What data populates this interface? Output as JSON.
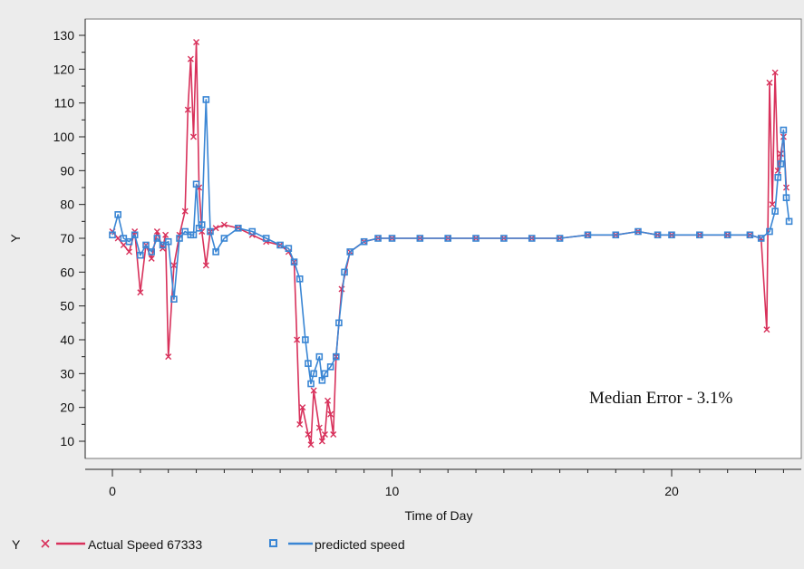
{
  "chart_data": {
    "type": "line",
    "title": "",
    "xlabel": "Time of Day",
    "ylabel": "Y",
    "xlim": [
      -0.9,
      24.9
    ],
    "ylim": [
      5,
      133
    ],
    "x_ticks": [
      0,
      10,
      20
    ],
    "y_ticks": [
      10,
      20,
      30,
      40,
      50,
      60,
      70,
      80,
      90,
      100,
      110,
      120,
      130
    ],
    "grid": false,
    "annotation": "Median Error - 3.1%",
    "legend": {
      "position": "bottom-left",
      "title": "Y",
      "entries": [
        "Actual Speed 67333",
        "predicted speed"
      ]
    },
    "colors": {
      "actual": "#d8315b",
      "predicted": "#3a86d4",
      "plot_background": "#ffffff",
      "page_background": "#ececec"
    },
    "series": [
      {
        "name": "Actual Speed 67333",
        "marker": "x",
        "x": [
          0,
          0.2,
          0.4,
          0.6,
          0.8,
          1.0,
          1.2,
          1.4,
          1.6,
          1.8,
          1.9,
          2.0,
          2.2,
          2.4,
          2.6,
          2.7,
          2.8,
          2.9,
          3.0,
          3.1,
          3.2,
          3.35,
          3.5,
          3.7,
          4.0,
          4.5,
          5.0,
          5.5,
          6.0,
          6.3,
          6.5,
          6.6,
          6.7,
          6.8,
          7.0,
          7.1,
          7.2,
          7.4,
          7.5,
          7.6,
          7.7,
          7.8,
          7.9,
          8.0,
          8.2,
          8.5,
          9.0,
          9.5,
          10.0,
          11.0,
          12.0,
          13.0,
          14.0,
          15.0,
          16.0,
          17.0,
          18.0,
          18.8,
          19.5,
          20.0,
          21.0,
          22.0,
          22.8,
          23.2,
          23.4,
          23.5,
          23.6,
          23.7,
          23.8,
          23.9,
          24.0,
          24.1
        ],
        "values": [
          72,
          70,
          68,
          66,
          72,
          54,
          68,
          64,
          72,
          67,
          71,
          35,
          62,
          71,
          78,
          108,
          123,
          100,
          128,
          85,
          72,
          62,
          72,
          73,
          74,
          73,
          71,
          69,
          68,
          66,
          63,
          40,
          15,
          20,
          12,
          9,
          25,
          14,
          10,
          12,
          22,
          18,
          12,
          35,
          55,
          66,
          69,
          70,
          70,
          70,
          70,
          70,
          70,
          70,
          70,
          71,
          71,
          72,
          71,
          71,
          71,
          71,
          71,
          70,
          43,
          116,
          80,
          119,
          90,
          95,
          100,
          85
        ]
      },
      {
        "name": "predicted speed",
        "marker": "square",
        "x": [
          0,
          0.2,
          0.4,
          0.6,
          0.8,
          1.0,
          1.2,
          1.4,
          1.6,
          1.8,
          2.0,
          2.2,
          2.4,
          2.6,
          2.8,
          2.9,
          3.0,
          3.1,
          3.2,
          3.35,
          3.5,
          3.7,
          4.0,
          4.5,
          5.0,
          5.5,
          6.0,
          6.3,
          6.5,
          6.7,
          6.9,
          7.0,
          7.1,
          7.2,
          7.4,
          7.5,
          7.6,
          7.8,
          8.0,
          8.1,
          8.3,
          8.5,
          9.0,
          9.5,
          10.0,
          11.0,
          12.0,
          13.0,
          14.0,
          15.0,
          16.0,
          17.0,
          18.0,
          18.8,
          19.5,
          20.0,
          21.0,
          22.0,
          22.8,
          23.2,
          23.5,
          23.7,
          23.8,
          23.9,
          24.0,
          24.1,
          24.2
        ],
        "values": [
          71,
          77,
          70,
          69,
          71,
          65,
          68,
          66,
          70,
          68,
          69,
          52,
          70,
          72,
          71,
          71,
          86,
          73,
          74,
          111,
          72,
          66,
          70,
          73,
          72,
          70,
          68,
          67,
          63,
          58,
          40,
          33,
          27,
          30,
          35,
          28,
          30,
          32,
          35,
          45,
          60,
          66,
          69,
          70,
          70,
          70,
          70,
          70,
          70,
          70,
          70,
          71,
          71,
          72,
          71,
          71,
          71,
          71,
          71,
          70,
          72,
          78,
          88,
          92,
          102,
          82,
          75
        ]
      }
    ]
  }
}
